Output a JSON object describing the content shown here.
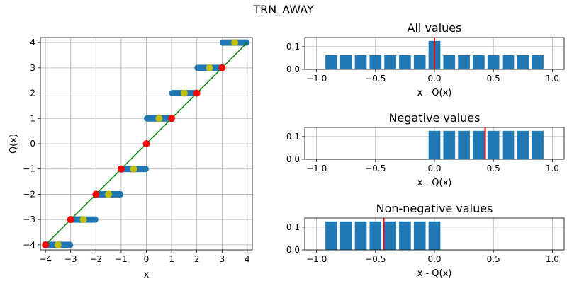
{
  "suptitle": "TRN_AWAY",
  "colors": {
    "blue": "#1f77b4",
    "red": "#ff0000",
    "yellow": "#bfbf00",
    "green": "#008000",
    "grid": "#b0b0b0"
  },
  "chart_data": [
    {
      "type": "scatter",
      "title": "",
      "xlabel": "x",
      "ylabel": "Q(x)",
      "xlim": [
        -4.2,
        4.2
      ],
      "ylim": [
        -4.2,
        4.2
      ],
      "xticks": [
        -4,
        -3,
        -2,
        -1,
        0,
        1,
        2,
        3,
        4
      ],
      "yticks": [
        -4,
        -3,
        -2,
        -1,
        0,
        1,
        2,
        3,
        4
      ],
      "grid": true,
      "line": {
        "x": [
          -4,
          4
        ],
        "y": [
          -4,
          4
        ],
        "color": "#008000"
      },
      "steps": [
        {
          "x_from": -4,
          "x_to": -3,
          "y": -4
        },
        {
          "x_from": -3,
          "x_to": -2,
          "y": -3
        },
        {
          "x_from": -2,
          "x_to": -1,
          "y": -2
        },
        {
          "x_from": -1,
          "x_to": 0,
          "y": -1
        },
        {
          "x_from": 0,
          "x_to": 1,
          "y": 1
        },
        {
          "x_from": 1,
          "x_to": 2,
          "y": 2
        },
        {
          "x_from": 2,
          "x_to": 3,
          "y": 3
        },
        {
          "x_from": 3,
          "x_to": 4,
          "y": 4
        }
      ],
      "red_points": {
        "x": [
          -4,
          -3,
          -2,
          -1,
          0,
          1,
          2,
          3
        ],
        "y": [
          -4,
          -3,
          -2,
          -1,
          0,
          1,
          2,
          3
        ]
      },
      "yellow_points": {
        "x": [
          -3.5,
          -2.5,
          -1.5,
          -0.5,
          0.5,
          1.5,
          2.5,
          3.5
        ],
        "y": [
          -4,
          -3,
          -2,
          -1,
          1,
          2,
          3,
          4
        ]
      }
    },
    {
      "type": "bar",
      "title": "All values",
      "xlabel": "x - Q(x)",
      "xlim": [
        -1.1,
        1.1
      ],
      "ylim": [
        0,
        0.14
      ],
      "xticks": [
        "-1.0",
        "-0.5",
        "0.0",
        "0.5",
        "1.0"
      ],
      "yticks": [
        "0.0",
        "0.1"
      ],
      "grid": true,
      "bin_centers": [
        -0.875,
        -0.75,
        -0.625,
        -0.5,
        -0.375,
        -0.25,
        -0.125,
        0,
        0.125,
        0.25,
        0.375,
        0.5,
        0.625,
        0.75,
        0.875
      ],
      "values": [
        0.0625,
        0.0625,
        0.0625,
        0.0625,
        0.0625,
        0.0625,
        0.0625,
        0.125,
        0.0625,
        0.0625,
        0.0625,
        0.0625,
        0.0625,
        0.0625,
        0.0625
      ],
      "bar_width": 0.1,
      "mean_line": 0.0
    },
    {
      "type": "bar",
      "title": "Negative values",
      "xlabel": "x - Q(x)",
      "xlim": [
        -1.1,
        1.1
      ],
      "ylim": [
        0,
        0.14
      ],
      "xticks": [
        "-1.0",
        "-0.5",
        "0.0",
        "0.5",
        "1.0"
      ],
      "yticks": [
        "0.0",
        "0.1"
      ],
      "grid": true,
      "bin_centers": [
        0,
        0.125,
        0.25,
        0.375,
        0.5,
        0.625,
        0.75,
        0.875
      ],
      "values": [
        0.125,
        0.125,
        0.125,
        0.125,
        0.125,
        0.125,
        0.125,
        0.125
      ],
      "bar_width": 0.1,
      "mean_line": 0.43
    },
    {
      "type": "bar",
      "title": "Non-negative values",
      "xlabel": "x - Q(x)",
      "xlim": [
        -1.1,
        1.1
      ],
      "ylim": [
        0,
        0.14
      ],
      "xticks": [
        "-1.0",
        "-0.5",
        "0.0",
        "0.5",
        "1.0"
      ],
      "yticks": [
        "0.0",
        "0.1"
      ],
      "grid": true,
      "bin_centers": [
        -0.875,
        -0.75,
        -0.625,
        -0.5,
        -0.375,
        -0.25,
        -0.125,
        0
      ],
      "values": [
        0.125,
        0.125,
        0.125,
        0.125,
        0.125,
        0.125,
        0.125,
        0.125
      ],
      "bar_width": 0.1,
      "mean_line": -0.43
    }
  ]
}
